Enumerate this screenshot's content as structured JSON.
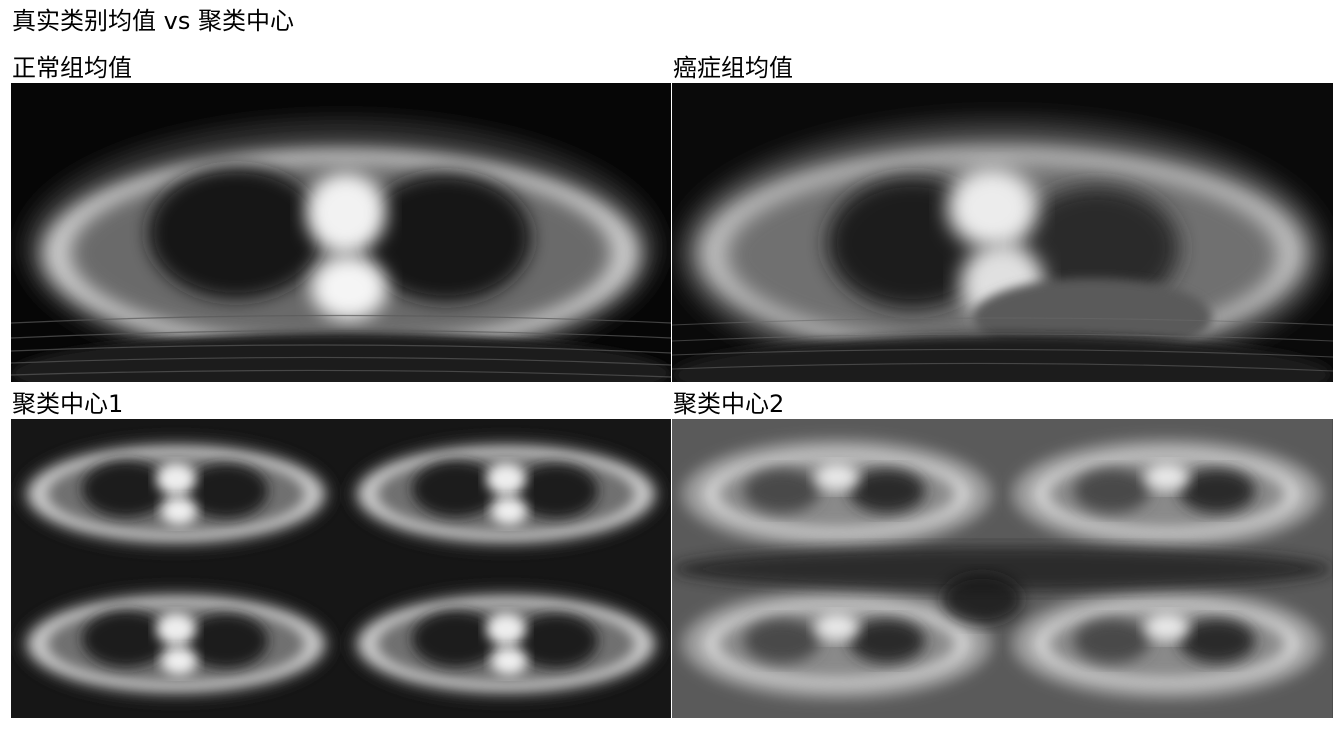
{
  "title": "真实类别均值 vs 聚类中心",
  "panels": [
    {
      "label": "正常组均值"
    },
    {
      "label": "癌症组均值"
    },
    {
      "label": "聚类中心1"
    },
    {
      "label": "聚类中心2"
    }
  ]
}
